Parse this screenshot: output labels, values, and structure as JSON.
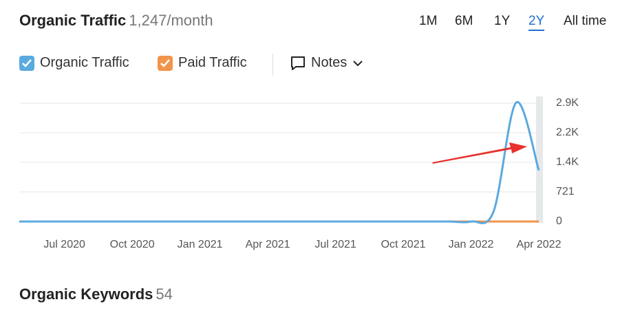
{
  "header": {
    "title": "Organic Traffic",
    "metric": "1,247/month"
  },
  "periods": [
    "1M",
    "6M",
    "1Y",
    "2Y",
    "All time"
  ],
  "notes": "Notes",
  "chart_data": {
    "type": "line",
    "x": [
      "2020-05",
      "2020-06",
      "2020-07",
      "2020-08",
      "2020-09",
      "2020-10",
      "2020-11",
      "2020-12",
      "2021-01",
      "2021-02",
      "2021-03",
      "2021-04",
      "2021-05",
      "2021-06",
      "2021-07",
      "2021-08",
      "2021-09",
      "2021-10",
      "2021-11",
      "2021-12",
      "2022-01",
      "2022-02",
      "2022-03",
      "2022-04"
    ],
    "series": [
      {
        "name": "Organic Traffic",
        "color": "#5aa9df",
        "values": [
          0,
          0,
          0,
          0,
          0,
          0,
          0,
          0,
          0,
          0,
          0,
          0,
          0,
          0,
          0,
          0,
          0,
          0,
          0,
          0,
          0,
          250,
          2900,
          1247
        ]
      },
      {
        "name": "Paid Traffic",
        "color": "#f2944a",
        "values": [
          0,
          0,
          0,
          0,
          0,
          0,
          0,
          0,
          0,
          0,
          0,
          0,
          0,
          0,
          0,
          0,
          0,
          0,
          0,
          0,
          0,
          0,
          0,
          0
        ]
      }
    ],
    "xlim": [
      "2020-05",
      "2022-04"
    ],
    "xticks": [
      {
        "value": "2020-07",
        "label": "Jul 2020"
      },
      {
        "value": "2020-10",
        "label": "Oct 2020"
      },
      {
        "value": "2021-01",
        "label": "Jan 2021"
      },
      {
        "value": "2021-04",
        "label": "Apr 2021"
      },
      {
        "value": "2021-07",
        "label": "Jul 2021"
      },
      {
        "value": "2021-10",
        "label": "Oct 2021"
      },
      {
        "value": "2022-01",
        "label": "Jan 2022"
      },
      {
        "value": "2022-04",
        "label": "Apr 2022"
      }
    ],
    "ylim": [
      0,
      2884
    ],
    "yticks": [
      0,
      721,
      {
        "value": 1442,
        "label": "1.4K"
      },
      {
        "value": 2163,
        "label": "2.2K"
      },
      {
        "value": 2884,
        "label": "2.9K"
      }
    ],
    "grid": true
  },
  "footer": {
    "title": "Organic Keywords",
    "count": 54
  }
}
